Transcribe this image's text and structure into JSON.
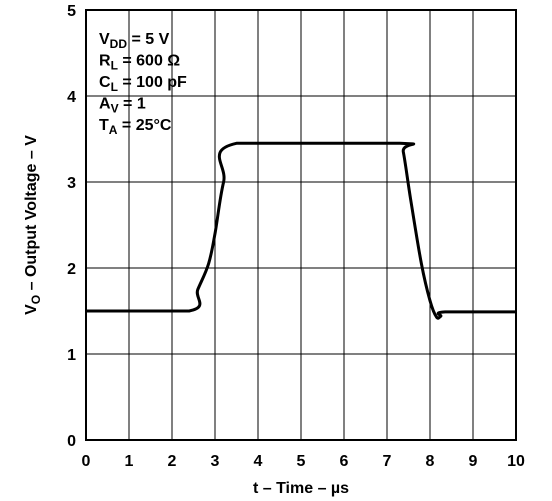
{
  "chart_data": {
    "type": "line",
    "xlabel": {
      "main": "t – Time – ",
      "unit": "µs"
    },
    "ylabel": {
      "sym": "V",
      "sub": "O",
      "rest": " – Output Voltage – V"
    },
    "xlim": [
      0,
      10
    ],
    "ylim": [
      0,
      5
    ],
    "xticks": [
      "0",
      "1",
      "2",
      "3",
      "4",
      "5",
      "6",
      "7",
      "8",
      "9",
      "10"
    ],
    "yticks": [
      "0",
      "1",
      "2",
      "3",
      "4",
      "5"
    ],
    "grid": true,
    "annotations": [
      {
        "sym": "V",
        "sub": "DD",
        "rest": " = 5 V"
      },
      {
        "sym": "R",
        "sub": "L",
        "rest": " = 600 Ω"
      },
      {
        "sym": "C",
        "sub": "L",
        "rest": " = 100 pF"
      },
      {
        "sym": "A",
        "sub": "V",
        "rest": " = 1"
      },
      {
        "sym": "T",
        "sub": "A",
        "rest": " = 25°C"
      }
    ],
    "series": [
      {
        "x": [
          0,
          2.4,
          2.6,
          2.85,
          3.0,
          3.2,
          3.5,
          7.3,
          7.38,
          7.55,
          7.8,
          8.0,
          8.15,
          8.25,
          8.35,
          10
        ],
        "y": [
          1.5,
          1.5,
          1.75,
          2.05,
          2.4,
          3.0,
          3.45,
          3.45,
          3.35,
          2.8,
          2.05,
          1.62,
          1.43,
          1.44,
          1.49,
          1.49
        ]
      }
    ]
  }
}
